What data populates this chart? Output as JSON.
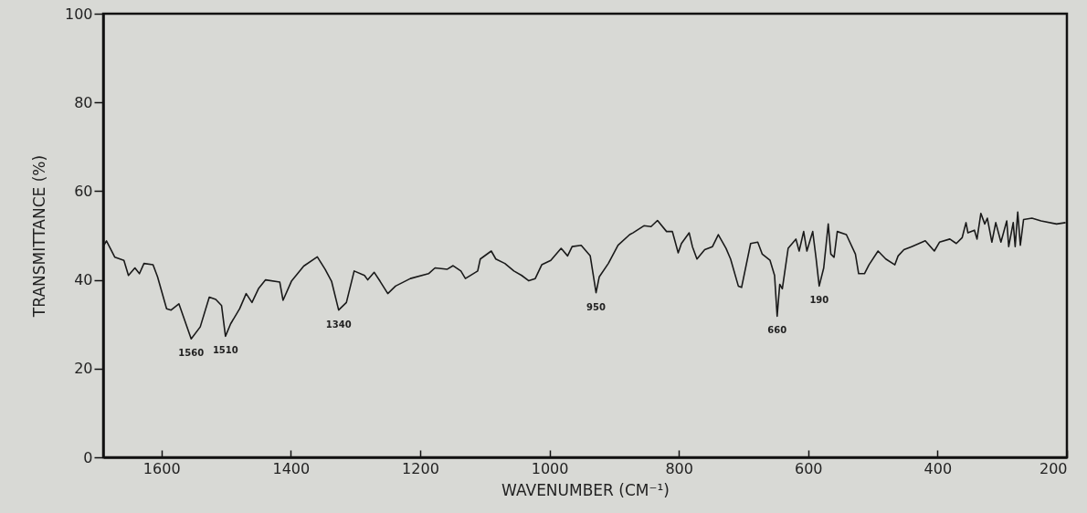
{
  "chart_data": {
    "type": "line",
    "xlabel": "WAVENUMBER (CM⁻¹)",
    "ylabel": "TRANSMITTANCE (%)",
    "xlim": [
      1690,
      200
    ],
    "xticks": [
      1600,
      1400,
      1200,
      1000,
      800,
      600,
      400,
      200
    ],
    "ylim": [
      0,
      100
    ],
    "yticks": [
      0,
      20,
      40,
      60,
      80,
      100
    ],
    "grid": false,
    "x": [
      1690,
      1685,
      1672,
      1658,
      1651,
      1641,
      1634,
      1627,
      1613,
      1606,
      1592,
      1585,
      1573,
      1554,
      1540,
      1526,
      1516,
      1507,
      1501,
      1493,
      1479,
      1469,
      1460,
      1450,
      1439,
      1417,
      1412,
      1399,
      1380,
      1359,
      1347,
      1337,
      1326,
      1314,
      1302,
      1286,
      1281,
      1271,
      1262,
      1250,
      1238,
      1215,
      1187,
      1177,
      1158,
      1149,
      1137,
      1130,
      1111,
      1107,
      1090,
      1083,
      1069,
      1055,
      1043,
      1032,
      1022,
      1012,
      998,
      982,
      972,
      965,
      951,
      937,
      928,
      923,
      909,
      894,
      876,
      871,
      854,
      843,
      833,
      819,
      810,
      801,
      796,
      784,
      779,
      772,
      760,
      748,
      739,
      727,
      720,
      708,
      703,
      689,
      678,
      671,
      659,
      652,
      648,
      644,
      640,
      631,
      619,
      614,
      607,
      602,
      593,
      588,
      583,
      576,
      569,
      565,
      560,
      555,
      541,
      527,
      522,
      513,
      506,
      492,
      480,
      466,
      461,
      452,
      440,
      419,
      405,
      397,
      381,
      371,
      362,
      356,
      353,
      343,
      339,
      333,
      327,
      323,
      316,
      310,
      302,
      293,
      290,
      283,
      280,
      276,
      272,
      267,
      254,
      240,
      216,
      202
    ],
    "series": [
      {
        "color": "#1a1a1a",
        "values": [
          47.5,
          48.8,
          45.1,
          44.4,
          41.0,
          42.7,
          41.4,
          43.7,
          43.4,
          40.7,
          33.5,
          33.2,
          34.6,
          26.7,
          29.4,
          36.1,
          35.6,
          34.2,
          27.3,
          30.1,
          33.5,
          36.9,
          34.9,
          38.0,
          40.0,
          39.5,
          35.4,
          39.7,
          43.1,
          45.2,
          42.4,
          39.7,
          33.2,
          34.9,
          42.0,
          41.0,
          40.0,
          41.7,
          39.7,
          36.9,
          38.6,
          40.3,
          41.4,
          42.7,
          42.4,
          43.2,
          42.0,
          40.3,
          42.0,
          44.7,
          46.5,
          44.7,
          43.7,
          42.0,
          41.0,
          39.8,
          40.3,
          43.4,
          44.4,
          47.1,
          45.4,
          47.5,
          47.8,
          45.4,
          37.1,
          40.7,
          43.7,
          47.8,
          50.2,
          50.6,
          52.2,
          52.0,
          53.4,
          50.9,
          50.9,
          46.1,
          48.2,
          50.6,
          47.5,
          44.7,
          46.8,
          47.5,
          50.2,
          47.1,
          44.7,
          38.6,
          38.3,
          48.2,
          48.5,
          45.8,
          44.4,
          41.0,
          31.8,
          39.0,
          38.0,
          47.1,
          49.2,
          46.5,
          50.9,
          46.5,
          50.9,
          45.1,
          38.6,
          42.7,
          52.6,
          45.8,
          45.1,
          50.9,
          50.2,
          45.8,
          41.4,
          41.4,
          43.4,
          46.5,
          44.7,
          43.4,
          45.4,
          46.8,
          47.5,
          48.8,
          46.5,
          48.5,
          49.2,
          48.2,
          49.5,
          52.9,
          50.6,
          51.2,
          49.2,
          55.0,
          52.6,
          53.9,
          48.5,
          52.9,
          48.5,
          53.3,
          47.5,
          52.9,
          47.5,
          55.3,
          47.8,
          53.6,
          53.9,
          53.3,
          52.6,
          52.9
        ]
      }
    ],
    "annotations": [
      {
        "text": "1560",
        "x": 1554,
        "y": 26.7
      },
      {
        "text": "1510",
        "x": 1501,
        "y": 27.3
      },
      {
        "text": "1340",
        "x": 1326,
        "y": 33.2
      },
      {
        "text": "950",
        "x": 928,
        "y": 37.1
      },
      {
        "text": "660",
        "x": 648,
        "y": 31.8
      },
      {
        "text": "190",
        "x": 583,
        "y": 38.6
      }
    ]
  }
}
